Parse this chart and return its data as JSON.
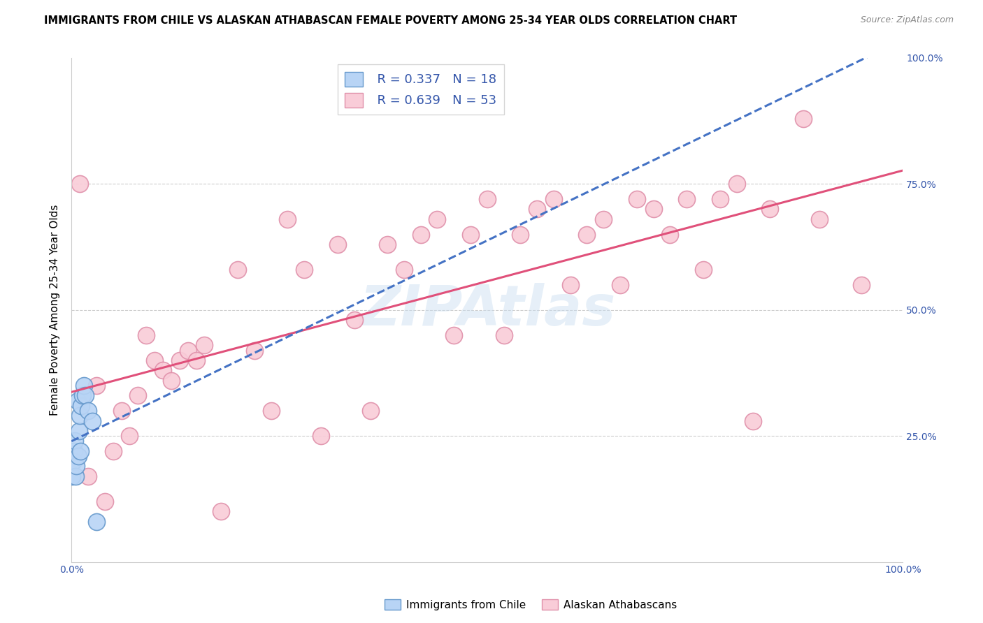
{
  "title": "IMMIGRANTS FROM CHILE VS ALASKAN ATHABASCAN FEMALE POVERTY AMONG 25-34 YEAR OLDS CORRELATION CHART",
  "source": "Source: ZipAtlas.com",
  "ylabel": "Female Poverty Among 25-34 Year Olds",
  "xlim": [
    0,
    1.0
  ],
  "ylim": [
    0,
    1.0
  ],
  "background_color": "#ffffff",
  "watermark": "ZIPAtlas",
  "chile": {
    "name": "Immigrants from Chile",
    "R": 0.337,
    "N": 18,
    "face": "#b8d4f5",
    "edge": "#6699cc",
    "line_color": "#4472c4",
    "x": [
      0.001,
      0.002,
      0.003,
      0.004,
      0.005,
      0.006,
      0.007,
      0.008,
      0.009,
      0.01,
      0.011,
      0.012,
      0.013,
      0.015,
      0.017,
      0.02,
      0.025,
      0.03
    ],
    "y": [
      0.17,
      0.2,
      0.22,
      0.24,
      0.17,
      0.19,
      0.32,
      0.21,
      0.26,
      0.29,
      0.22,
      0.31,
      0.33,
      0.35,
      0.33,
      0.3,
      0.28,
      0.08
    ]
  },
  "athabascan": {
    "name": "Alaskan Athabascans",
    "R": 0.639,
    "N": 53,
    "face": "#f9ccd8",
    "edge": "#e090aa",
    "line_color": "#e0507a",
    "x": [
      0.01,
      0.02,
      0.03,
      0.04,
      0.05,
      0.06,
      0.07,
      0.08,
      0.09,
      0.1,
      0.11,
      0.12,
      0.13,
      0.14,
      0.15,
      0.16,
      0.18,
      0.2,
      0.22,
      0.24,
      0.26,
      0.28,
      0.3,
      0.32,
      0.34,
      0.36,
      0.38,
      0.4,
      0.42,
      0.44,
      0.46,
      0.48,
      0.5,
      0.52,
      0.54,
      0.56,
      0.58,
      0.6,
      0.62,
      0.64,
      0.66,
      0.68,
      0.7,
      0.72,
      0.74,
      0.76,
      0.78,
      0.8,
      0.82,
      0.84,
      0.88,
      0.9,
      0.95
    ],
    "y": [
      0.75,
      0.17,
      0.35,
      0.12,
      0.22,
      0.3,
      0.25,
      0.33,
      0.45,
      0.4,
      0.38,
      0.36,
      0.4,
      0.42,
      0.4,
      0.43,
      0.1,
      0.58,
      0.42,
      0.3,
      0.68,
      0.58,
      0.25,
      0.63,
      0.48,
      0.3,
      0.63,
      0.58,
      0.65,
      0.68,
      0.45,
      0.65,
      0.72,
      0.45,
      0.65,
      0.7,
      0.72,
      0.55,
      0.65,
      0.68,
      0.55,
      0.72,
      0.7,
      0.65,
      0.72,
      0.58,
      0.72,
      0.75,
      0.28,
      0.7,
      0.88,
      0.68,
      0.55
    ]
  },
  "title_fontsize": 10.5,
  "source_fontsize": 9,
  "ylabel_fontsize": 11,
  "tick_fontsize": 10,
  "legend_fontsize": 13
}
